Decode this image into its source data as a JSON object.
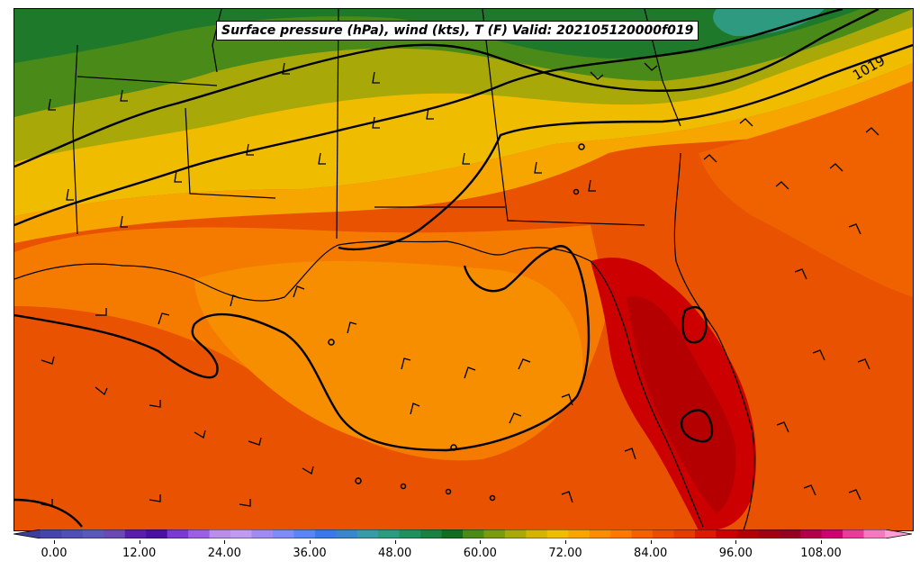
{
  "title": "Surface pressure (hPa), wind (kts), T (F) Valid: 202105120000f019",
  "isobar_label": "1019",
  "colors": {
    "background": "#ffffff",
    "temp_scale": [
      "#3d3d9e",
      "#4646a8",
      "#5050b2",
      "#5a5ab6",
      "#6a4aae",
      "#5a1fa8",
      "#4a10a0",
      "#7a3ad0",
      "#9a60e0",
      "#b88ee8",
      "#c09af0",
      "#a08cf0",
      "#7f8cf5",
      "#5a86f5",
      "#3a7ae8",
      "#3a86c8",
      "#3a9aa8",
      "#2e9a80",
      "#22905c",
      "#1e8040",
      "#106e20",
      "#4a8a18",
      "#7a9a10",
      "#a8a808",
      "#d4b400",
      "#f0bc00",
      "#f7a600",
      "#fa8e00",
      "#ff7800",
      "#f65f00",
      "#ed4c00",
      "#e63a00",
      "#dc1a00",
      "#cc0000",
      "#b40000",
      "#a00010",
      "#960020",
      "#b4004a",
      "#d00070",
      "#e83c9a",
      "#f47ac0",
      "#ff9ed6"
    ],
    "isobar": "#000000",
    "wind_barb": "#000000",
    "coastline": "#000000"
  },
  "colorbar": {
    "ticks": [
      "0.00",
      "12.00",
      "24.00",
      "36.00",
      "48.00",
      "60.00",
      "72.00",
      "84.00",
      "96.00",
      "108.00"
    ]
  },
  "map_layers": [
    "temperature-fill",
    "isobars",
    "wind-barbs",
    "state-borders",
    "coastlines"
  ]
}
